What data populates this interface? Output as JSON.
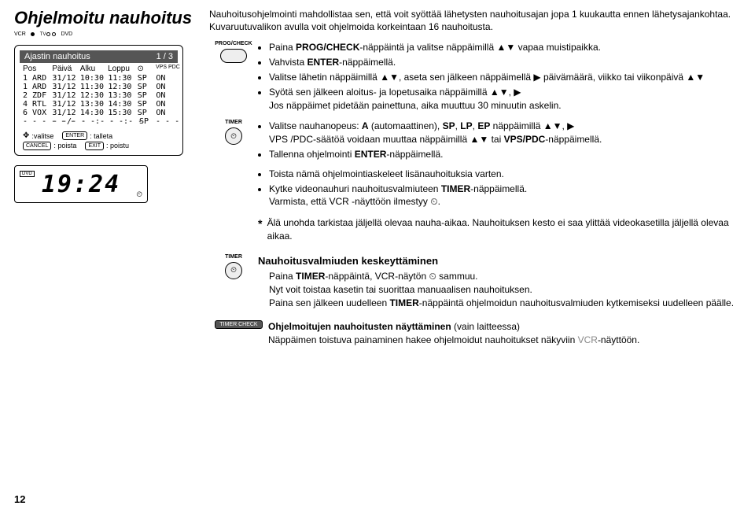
{
  "page_title": "Ohjelmoitu nauhoitus",
  "vcr_bar": {
    "left": "VCR",
    "mid": "TV",
    "right": "DVD"
  },
  "osd": {
    "header_left": "Ajastin nauhoitus",
    "header_right": "1 / 3",
    "cols": [
      "Pos",
      "Päivä",
      "Alku",
      "Loppu",
      "⊙",
      "VPS\nPDC"
    ],
    "rows": [
      [
        "1 ARD",
        "31/12",
        "10:30",
        "11:30",
        "SP",
        "ON"
      ],
      [
        "1 ARD",
        "31/12",
        "11:30",
        "12:30",
        "SP",
        "ON"
      ],
      [
        "2 ZDF",
        "31/12",
        "12:30",
        "13:30",
        "SP",
        "ON"
      ],
      [
        "4 RTL",
        "31/12",
        "13:30",
        "14:30",
        "SP",
        "ON"
      ],
      [
        "6 VOX",
        "31/12",
        "14:30",
        "15:30",
        "SP",
        "ON"
      ],
      [
        "- - - - - -",
        "- -/- -",
        "- -:- -",
        "- -:- -",
        "SP",
        "- - -"
      ]
    ],
    "footer": {
      "cross": "✥",
      "valitse": ":valitse",
      "enter": "ENTER",
      "talleta": ": talleta",
      "cancel": "CANCEL",
      "poista": ": poista",
      "exit": "EXIT",
      "poistu": ": poistu"
    }
  },
  "display": {
    "dvd": "DVD",
    "time": "19:24",
    "clock": "⏲"
  },
  "intro": "Nauhoitusohjelmointi mahdollistaa sen, että voit syöttää lähetysten nauhoitusajan jopa 1 kuukautta ennen lähetysajankohtaa. Kuvaruutuvalikon avulla voit ohjelmoida korkeintaan 16 nauhoitusta.",
  "step1": {
    "label": "PROG/CHECK",
    "b1a": "Paina ",
    "b1b": "PROG/CHECK",
    "b1c": "-näppäintä ja valitse näppäimillä ",
    "b1d": "▲▼",
    "b1e": " vapaa muistipaikka.",
    "b2a": "Vahvista ",
    "b2b": "ENTER",
    "b2c": "-näppäimellä.",
    "b3a": "Valitse lähetin näppäimillä ",
    "b3b": "▲▼",
    "b3c": ", aseta sen jälkeen näppäimellä ",
    "b3d": "▶",
    "b3e": " päivämäärä, viikko tai viikonpäivä ",
    "b3f": "▲▼",
    "b4a": "Syötä sen jälkeen aloitus- ja lopetusaika näppäimillä ",
    "b4b": "▲▼",
    "b4c": ", ",
    "b4d": "▶",
    "b4sub": "Jos näppäimet pidetään painettuna, aika muuttuu 30 minuutin askelin."
  },
  "step2": {
    "label": "TIMER",
    "b1a": "Valitse nauhanopeus: ",
    "b1b": "A",
    "b1c": " (automaattinen), ",
    "b1d": "SP",
    "b1e": ", ",
    "b1f": "LP",
    "b1g": ", ",
    "b1h": "EP",
    "b1i": " näppäimillä ",
    "b1j": "▲▼",
    "b1k": ", ",
    "b1l": "▶",
    "b1sub_a": "VPS /PDC-säätöä voidaan muuttaa näppäimillä ",
    "b1sub_b": "▲▼",
    "b1sub_c": " tai ",
    "b1sub_d": "VPS/PDC",
    "b1sub_e": "-näppäimellä.",
    "b2a": "Tallenna ohjelmointi ",
    "b2b": "ENTER",
    "b2c": "-näppäimellä.",
    "b3": "Toista nämä ohjelmointiaskeleet lisänauhoituksia varten.",
    "b4a": "Kytke videonauhuri nauhoitusvalmiuteen ",
    "b4b": "TIMER",
    "b4c": "-näppäimellä.",
    "b4sub_a": "Varmista, että VCR -näyttöön ilmestyy ",
    "b4sub_b": "⏲",
    "b4sub_c": "."
  },
  "asterisk": "Älä unohda tarkistaa jäljellä olevaa nauha-aikaa. Nauhoituksen kesto ei saa ylittää videokasetilla jäljellä olevaa aikaa.",
  "step3": {
    "label": "TIMER",
    "heading": "Nauhoitusvalmiuden keskeyttäminen",
    "l1a": "Paina ",
    "l1b": "TIMER",
    "l1c": "-näppäintä, VCR-näytön ",
    "l1d": "⏲",
    "l1e": " sammuu.",
    "l2": "Nyt voit toistaa kasetin tai suorittaa manuaalisen nauhoituksen.",
    "l3a": "Paina sen jälkeen uudelleen ",
    "l3b": "TIMER",
    "l3c": "-näppäintä ohjelmoidun nauhoitusvalmiuden kytkemiseksi uudelleen päälle."
  },
  "timer_check": {
    "label": "TIMER CHECK",
    "h": "Ohjelmoitujen nauhoitusten näyttäminen",
    "hparen": " (vain laitteessa)",
    "body_a": "Näppäimen toistuva painaminen hakee ohjelmoidut nauhoitukset näkyviin ",
    "body_b": "VCR",
    "body_c": "-näyttöön."
  },
  "page_num": "12",
  "colors": {
    "header_bg": "#555555",
    "page_bg": "#ffffff",
    "text": "#000000",
    "btn_fill": "#eeeeee"
  }
}
